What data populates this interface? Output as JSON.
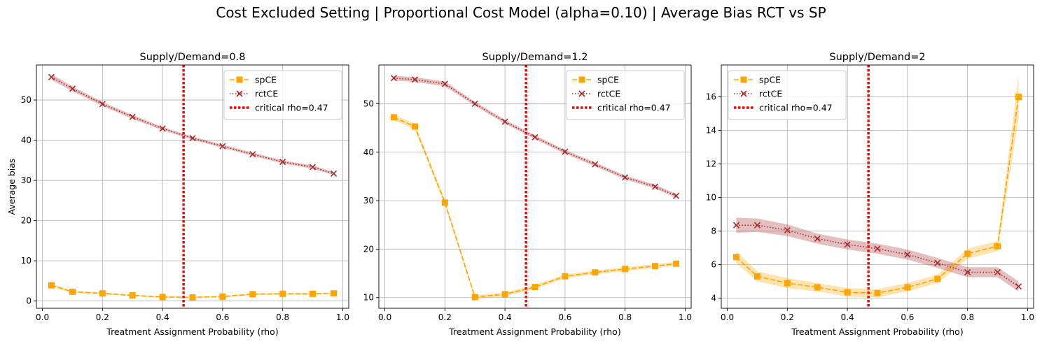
{
  "figure": {
    "suptitle": "Cost Excluded Setting | Proportional Cost Model (alpha=0.10) | Average Bias RCT vs SP"
  },
  "chart_data": [
    {
      "type": "line",
      "title": "Supply/Demand=0.8",
      "xlabel": "Treatment Assignment Probability (rho)",
      "ylabel": "Average bias",
      "xlim": [
        -0.02,
        1.02
      ],
      "ylim": [
        -1.8,
        58.7
      ],
      "xticks": [
        0.0,
        0.2,
        0.4,
        0.6,
        0.8,
        1.0
      ],
      "xtick_labels": [
        "0.0",
        "0.2",
        "0.4",
        "0.6",
        "0.8",
        "1.0"
      ],
      "yticks": [
        0,
        10,
        20,
        30,
        40,
        50
      ],
      "ytick_labels": [
        "0",
        "10",
        "20",
        "30",
        "40",
        "50"
      ],
      "grid": true,
      "legend_position": "upper right",
      "critical_line": {
        "x": 0.47,
        "label": "critical rho=0.47",
        "color": "#ff0000"
      },
      "x": [
        0.03,
        0.1,
        0.2,
        0.3,
        0.4,
        0.5,
        0.6,
        0.7,
        0.8,
        0.9,
        0.97
      ],
      "series": [
        {
          "name": "spCE",
          "color": "#ffa500",
          "style": "dashed",
          "marker": "square",
          "values": [
            3.9,
            2.3,
            1.9,
            1.4,
            1.0,
            0.9,
            1.1,
            1.7,
            1.8,
            1.8,
            1.9
          ],
          "band": [
            0.4,
            0.3,
            0.2,
            0.2,
            0.2,
            0.2,
            0.2,
            0.2,
            0.2,
            0.2,
            0.2
          ]
        },
        {
          "name": "rctCE",
          "color": "#a52a2a",
          "style": "dotted",
          "marker": "x",
          "values": [
            55.7,
            52.8,
            49.0,
            45.8,
            42.9,
            40.5,
            38.5,
            36.5,
            34.6,
            33.3,
            31.7
          ],
          "band": [
            0.7,
            0.6,
            0.5,
            0.5,
            0.4,
            0.4,
            0.4,
            0.4,
            0.4,
            0.4,
            0.4
          ]
        }
      ]
    },
    {
      "type": "line",
      "title": "Supply/Demand=1.2",
      "xlabel": "Treatment Assignment Probability (rho)",
      "ylabel": "",
      "xlim": [
        -0.02,
        1.02
      ],
      "ylim": [
        7.8,
        58.0
      ],
      "xticks": [
        0.0,
        0.2,
        0.4,
        0.6,
        0.8,
        1.0
      ],
      "xtick_labels": [
        "0.0",
        "0.2",
        "0.4",
        "0.6",
        "0.8",
        "1.0"
      ],
      "yticks": [
        10,
        20,
        30,
        40,
        50
      ],
      "ytick_labels": [
        "10",
        "20",
        "30",
        "40",
        "50"
      ],
      "grid": true,
      "legend_position": "upper right",
      "critical_line": {
        "x": 0.47,
        "label": "critical rho=0.47",
        "color": "#ff0000"
      },
      "x": [
        0.03,
        0.1,
        0.2,
        0.3,
        0.4,
        0.5,
        0.6,
        0.7,
        0.8,
        0.9,
        0.97
      ],
      "series": [
        {
          "name": "spCE",
          "color": "#ffa500",
          "style": "dashed",
          "marker": "square",
          "values": [
            47.2,
            45.3,
            29.6,
            10.1,
            10.7,
            12.2,
            14.4,
            15.2,
            15.9,
            16.5,
            17.0
          ],
          "band": [
            0.6,
            0.6,
            0.6,
            0.4,
            0.4,
            0.4,
            0.4,
            0.4,
            0.4,
            0.4,
            0.4
          ]
        },
        {
          "name": "rctCE",
          "color": "#a52a2a",
          "style": "dotted",
          "marker": "x",
          "values": [
            55.3,
            55.0,
            54.1,
            50.0,
            46.3,
            43.1,
            40.1,
            37.5,
            34.8,
            32.9,
            31.0
          ],
          "band": [
            0.5,
            0.5,
            0.5,
            0.4,
            0.4,
            0.4,
            0.4,
            0.4,
            0.4,
            0.4,
            0.4
          ]
        }
      ]
    },
    {
      "type": "line",
      "title": "Supply/Demand=2",
      "xlabel": "Treatment Assignment Probability (rho)",
      "ylabel": "",
      "xlim": [
        -0.02,
        1.02
      ],
      "ylim": [
        3.4,
        17.9
      ],
      "xticks": [
        0.0,
        0.2,
        0.4,
        0.6,
        0.8,
        1.0
      ],
      "xtick_labels": [
        "0.0",
        "0.2",
        "0.4",
        "0.6",
        "0.8",
        "1.0"
      ],
      "yticks": [
        4,
        6,
        8,
        10,
        12,
        14,
        16
      ],
      "ytick_labels": [
        "4",
        "6",
        "8",
        "10",
        "12",
        "14",
        "16"
      ],
      "grid": true,
      "legend_position": "upper left",
      "critical_line": {
        "x": 0.47,
        "label": "critical rho=0.47",
        "color": "#ff0000"
      },
      "x": [
        0.03,
        0.1,
        0.2,
        0.3,
        0.4,
        0.5,
        0.6,
        0.7,
        0.8,
        0.9,
        0.97
      ],
      "series": [
        {
          "name": "spCE",
          "color": "#ffa500",
          "style": "dashed",
          "marker": "square",
          "values": [
            6.45,
            5.3,
            4.9,
            4.65,
            4.35,
            4.3,
            4.65,
            5.15,
            6.65,
            7.1,
            16.0
          ],
          "band": [
            0.35,
            0.3,
            0.3,
            0.25,
            0.25,
            0.25,
            0.25,
            0.25,
            0.3,
            0.3,
            1.3
          ]
        },
        {
          "name": "rctCE",
          "color": "#a52a2a",
          "style": "dotted",
          "marker": "x",
          "values": [
            8.35,
            8.35,
            8.05,
            7.55,
            7.2,
            6.95,
            6.6,
            6.1,
            5.55,
            5.55,
            4.7
          ],
          "band": [
            0.45,
            0.4,
            0.35,
            0.3,
            0.3,
            0.3,
            0.3,
            0.3,
            0.3,
            0.3,
            0.3
          ]
        }
      ]
    }
  ]
}
